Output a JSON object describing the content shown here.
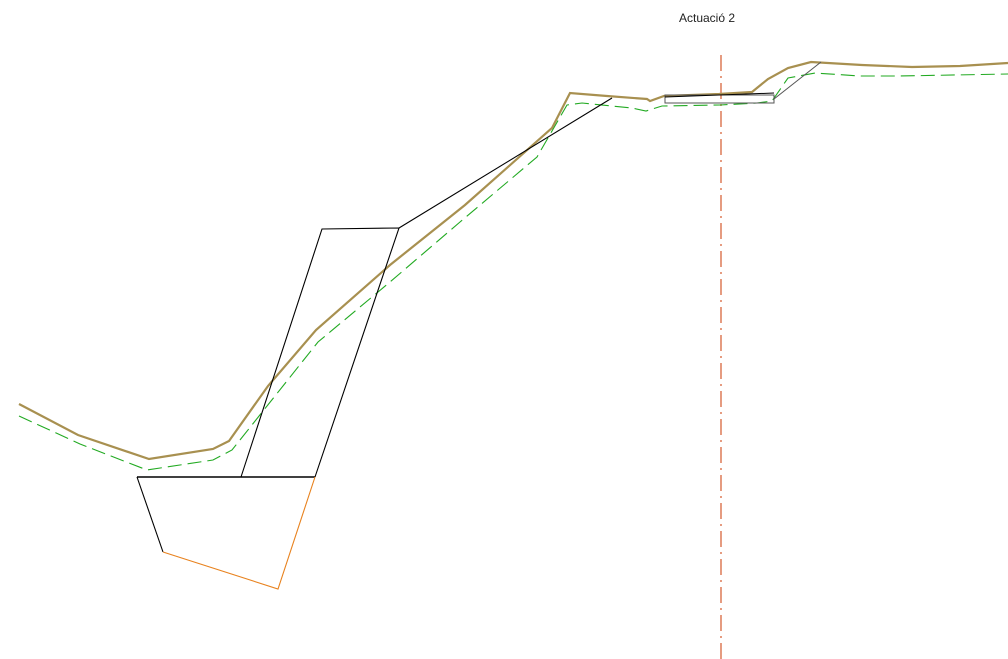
{
  "annotation": {
    "label": "Actuació 2"
  },
  "colors": {
    "background": "#ffffff",
    "terrain_profile": "#a89050",
    "excavation_profile": "#22aa22",
    "axis_line": "#d04a1a",
    "foundation": "#e8821e",
    "structure": "#000000",
    "small_element": "#555555"
  }
}
